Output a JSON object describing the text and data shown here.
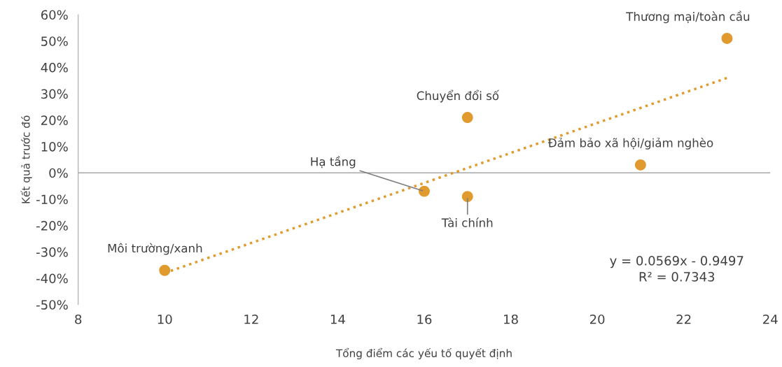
{
  "chart_data": {
    "type": "scatter",
    "xlabel": "Tổng điểm các yếu tố quyết định",
    "ylabel": "Kết quả trước đó",
    "xlim": [
      8,
      24
    ],
    "xticks": [
      8,
      10,
      12,
      14,
      16,
      18,
      20,
      22,
      24
    ],
    "ylim": [
      -50,
      60
    ],
    "yticks": [
      {
        "value": -50,
        "label": "-50%"
      },
      {
        "value": -40,
        "label": "-40%"
      },
      {
        "value": -30,
        "label": "-30%"
      },
      {
        "value": -20,
        "label": "-20%"
      },
      {
        "value": -10,
        "label": "-10%"
      },
      {
        "value": 0,
        "label": "0%"
      },
      {
        "value": 10,
        "label": "10%"
      },
      {
        "value": 20,
        "label": "20%"
      },
      {
        "value": 30,
        "label": "30%"
      },
      {
        "value": 40,
        "label": "40%"
      },
      {
        "value": 50,
        "label": "50%"
      },
      {
        "value": 60,
        "label": "60%"
      }
    ],
    "series": [
      {
        "type": "scatter",
        "color": "#e09a2d",
        "marker": "circle",
        "x": [
          10,
          16,
          17,
          17,
          21,
          23
        ],
        "values": [
          -37,
          -7,
          21,
          -9,
          3,
          51
        ]
      },
      {
        "type": "line",
        "color": "#e09a2d",
        "line_style": "dotted",
        "marker": "none",
        "x": [
          10,
          23
        ],
        "values": [
          -38,
          36
        ]
      }
    ],
    "ref_lines": [
      {
        "axis": "y",
        "value": 0,
        "color": "#a6a6a6"
      }
    ],
    "annotations": [
      {
        "text": "Thương mại/toàn cầu",
        "x": 23,
        "y": 51
      },
      {
        "text": "Chuyển đổi số",
        "x": 17,
        "y": 21
      },
      {
        "text": "Đảm bảo xã hội/giảm nghèo",
        "x": 21,
        "y": 3
      },
      {
        "text": "Hạ tầng",
        "x": 16,
        "y": -7
      },
      {
        "text": "Tài chính",
        "x": 17,
        "y": -9
      },
      {
        "text": "Môi trường/xanh",
        "x": 10,
        "y": -37
      },
      "y = 0.0569x - 0.9497\nR² = 0.7343"
    ],
    "grid": false,
    "legend": false
  }
}
